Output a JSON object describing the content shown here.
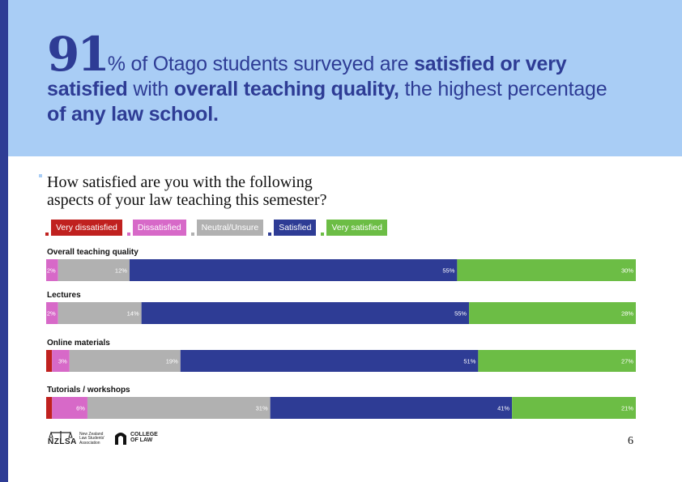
{
  "hero": {
    "big_number": "91",
    "part1": "% of Otago students surveyed are ",
    "bold1": "satisfied or very satisfied",
    "part2": " with ",
    "bold2": "overall teaching quality,",
    "part3": " the highest percentage ",
    "bold3": "of any law school."
  },
  "question": {
    "line1": "How satisfied are you with the following",
    "line2": "aspects of your law teaching this semester?"
  },
  "colors": {
    "very_dissatisfied": "#c0211f",
    "dissatisfied": "#d769c8",
    "neutral": "#b1b1b1",
    "satisfied": "#2e3c95",
    "very_satisfied": "#6cbd45"
  },
  "chart_data": {
    "type": "bar",
    "orientation": "horizontal-stacked-100",
    "legend_position": "top-left",
    "series": [
      {
        "name": "Very dissatisfied",
        "color": "#c0211f"
      },
      {
        "name": "Dissatisfied",
        "color": "#d769c8"
      },
      {
        "name": "Neutral/Unsure",
        "color": "#b1b1b1"
      },
      {
        "name": "Satisfied",
        "color": "#2e3c95"
      },
      {
        "name": "Very satisfied",
        "color": "#6cbd45"
      }
    ],
    "categories": [
      {
        "name": "Overall teaching quality",
        "values": [
          0,
          2,
          12,
          55,
          30
        ],
        "labels": [
          "",
          "2%",
          "12%",
          "55%",
          "30%"
        ]
      },
      {
        "name": "Lectures",
        "values": [
          0,
          2,
          14,
          55,
          28
        ],
        "labels": [
          "",
          "2%",
          "14%",
          "55%",
          "28%"
        ]
      },
      {
        "name": "Online materials",
        "values": [
          1,
          3,
          19,
          51,
          27
        ],
        "labels": [
          "",
          "3%",
          "19%",
          "51%",
          "27%"
        ]
      },
      {
        "name": "Tutorials / workshops",
        "values": [
          1,
          6,
          31,
          41,
          21
        ],
        "labels": [
          "",
          "6%",
          "31%",
          "41%",
          "21%"
        ]
      }
    ]
  },
  "footer": {
    "nzlsa_mark": "NZLSA",
    "nzlsa_line1": "New Zealand",
    "nzlsa_line2": "Law Students'",
    "nzlsa_line3": "Association",
    "col_line1": "COLLEGE",
    "col_line2": "OF LAW",
    "page_number": "6"
  }
}
